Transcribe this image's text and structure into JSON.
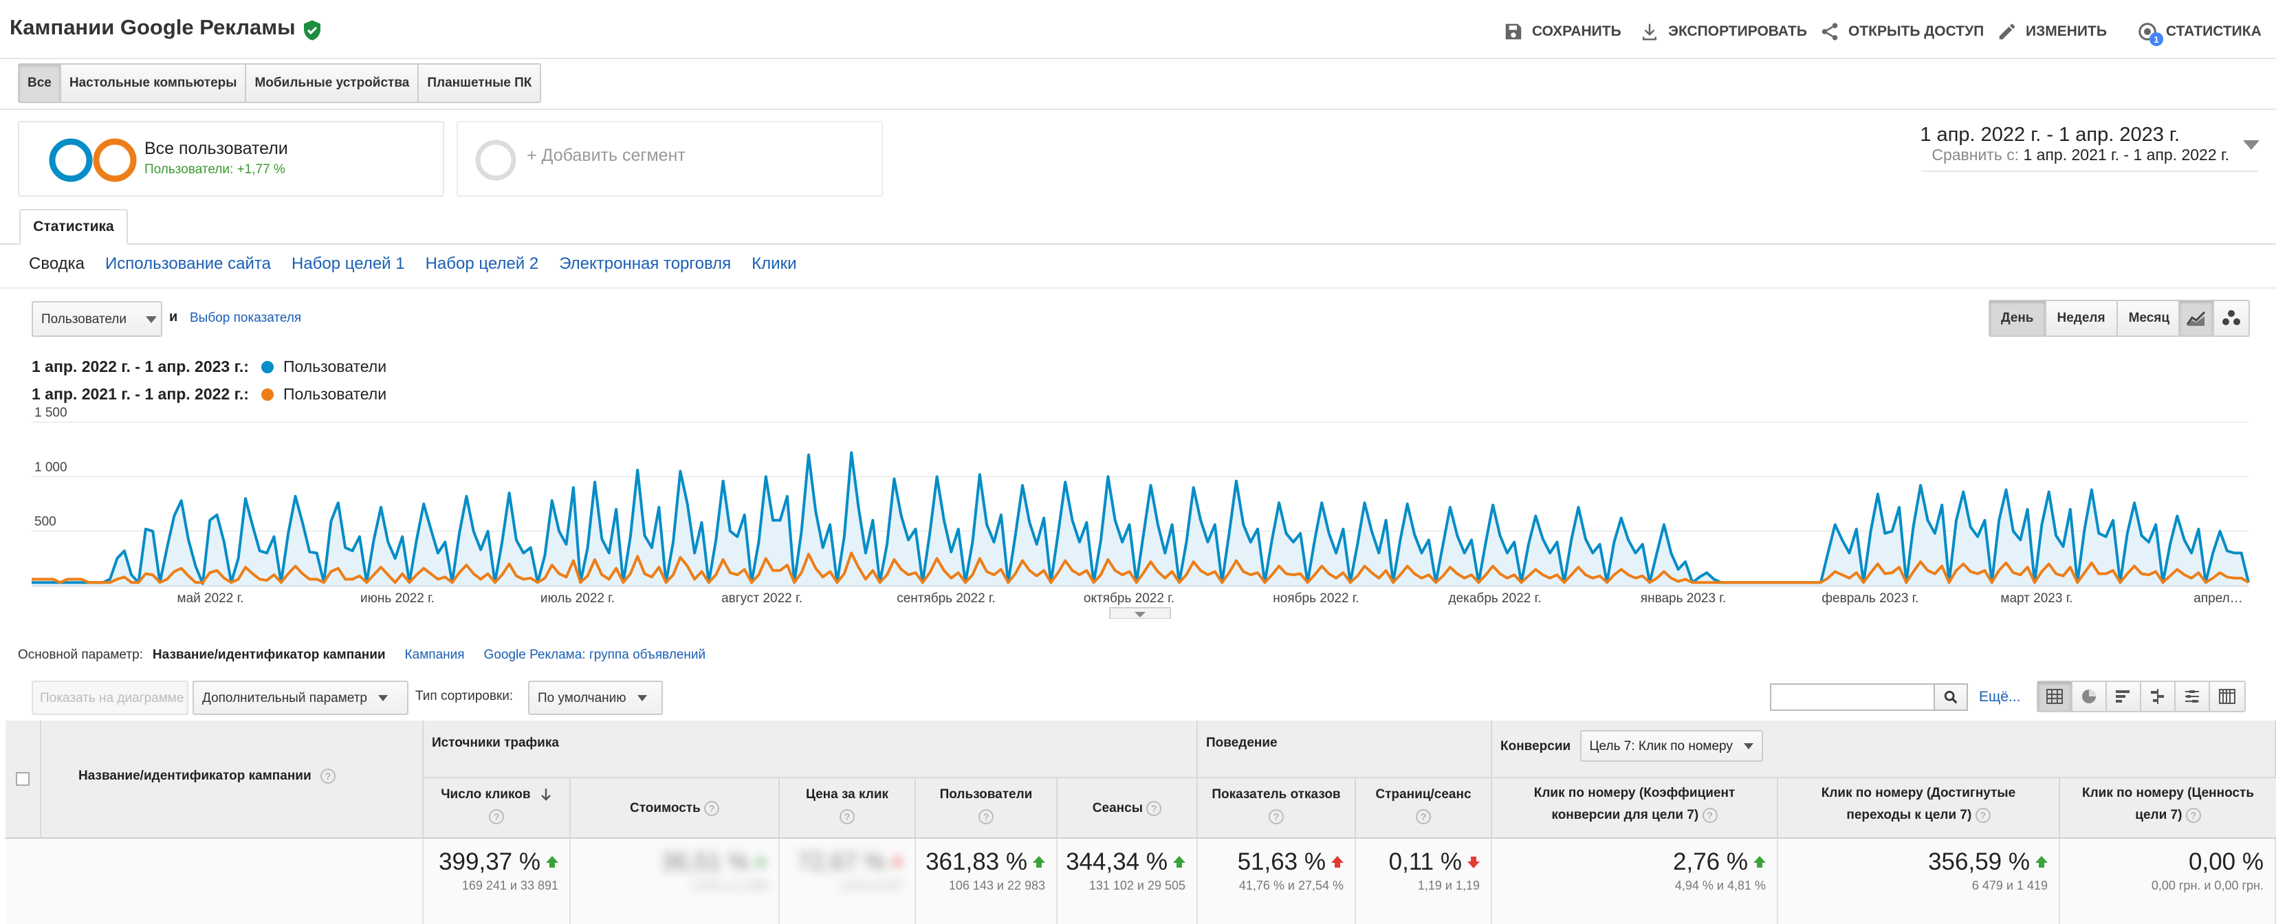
{
  "header": {
    "title": "Кампании Google Рекламы",
    "actions": {
      "save": "СОХРАНИТЬ",
      "export": "ЭКСПОРТИРОВАТЬ",
      "share": "ОТКРЫТЬ ДОСТУП",
      "edit": "ИЗМЕНИТЬ",
      "insights": "СТАТИСТИКА",
      "insights_badge": "1"
    }
  },
  "device_tabs": [
    "Все",
    "Настольные компьютеры",
    "Мобильные устройства",
    "Планшетные ПК"
  ],
  "segments": {
    "all_users": {
      "title": "Все пользователи",
      "sub": "Пользователи: +1,77 %"
    },
    "add_label": "+ Добавить сегмент"
  },
  "date_range": {
    "main": "1 апр. 2022 г. - 1 апр. 2023 г.",
    "compare_label": "Сравнить с:",
    "compare_value": "1 апр. 2021 г. - 1 апр. 2022 г."
  },
  "report_tab": "Статистика",
  "explorer_tabs": [
    "Сводка",
    "Использование сайта",
    "Набор целей 1",
    "Набор целей 2",
    "Электронная торговля",
    "Клики"
  ],
  "chart_controls": {
    "metric": "Пользователи",
    "and": "и",
    "choose_metric": "Выбор показателя",
    "periods": [
      "День",
      "Неделя",
      "Месяц"
    ]
  },
  "legend": [
    {
      "range": "1 апр. 2022 г. - 1 апр. 2023 г.:",
      "series": "Пользователи",
      "color": "#058dc7"
    },
    {
      "range": "1 апр. 2021 г. - 1 апр. 2022 г.:",
      "series": "Пользователи",
      "color": "#ed7e17"
    }
  ],
  "chart_data": {
    "type": "line",
    "y_ticks": [
      "1 500",
      "1 000",
      "500"
    ],
    "ylim": [
      0,
      1500
    ],
    "x_labels": [
      "май 2022 г.",
      "июнь 2022 г.",
      "июль 2022 г.",
      "август 2022 г.",
      "сентябрь 2022 г.",
      "октябрь 2022 г.",
      "ноябрь 2022 г.",
      "декабрь 2022 г.",
      "январь 2023 г.",
      "февраль 2023 г.",
      "март 2023 г.",
      "апрел…"
    ],
    "series": [
      {
        "name": "Пользователи",
        "color": "#058dc7",
        "period": "1 апр. 2022 г. - 1 апр. 2023 г.",
        "values": [
          30,
          30,
          30,
          30,
          30,
          30,
          30,
          30,
          30,
          30,
          30,
          60,
          250,
          320,
          100,
          30,
          520,
          500,
          30,
          350,
          640,
          780,
          420,
          180,
          20,
          600,
          650,
          400,
          30,
          250,
          800,
          550,
          320,
          300,
          450,
          30,
          480,
          820,
          580,
          310,
          300,
          30,
          590,
          760,
          350,
          320,
          450,
          30,
          420,
          720,
          400,
          250,
          450,
          30,
          420,
          750,
          520,
          300,
          400,
          30,
          480,
          820,
          500,
          330,
          500,
          30,
          400,
          850,
          420,
          300,
          350,
          30,
          280,
          780,
          500,
          380,
          900,
          30,
          350,
          950,
          430,
          300,
          700,
          30,
          450,
          1060,
          460,
          350,
          720,
          30,
          400,
          1050,
          750,
          300,
          580,
          30,
          420,
          960,
          500,
          450,
          650,
          30,
          400,
          1000,
          600,
          600,
          820,
          30,
          500,
          1200,
          680,
          350,
          560,
          30,
          450,
          1220,
          720,
          300,
          600,
          30,
          380,
          980,
          640,
          420,
          520,
          30,
          480,
          1000,
          600,
          310,
          520,
          30,
          400,
          1020,
          560,
          400,
          650,
          30,
          460,
          920,
          580,
          380,
          620,
          30,
          480,
          950,
          600,
          400,
          580,
          30,
          420,
          1000,
          600,
          400,
          560,
          30,
          480,
          920,
          560,
          300,
          560,
          30,
          400,
          900,
          600,
          400,
          560,
          30,
          480,
          960,
          560,
          400,
          520,
          30,
          420,
          760,
          480,
          400,
          480,
          30,
          420,
          760,
          480,
          300,
          520,
          30,
          380,
          760,
          500,
          300,
          600,
          30,
          420,
          750,
          470,
          300,
          420,
          30,
          380,
          720,
          460,
          300,
          420,
          30,
          400,
          740,
          460,
          300,
          400,
          30,
          380,
          640,
          430,
          300,
          400,
          30,
          420,
          720,
          430,
          300,
          380,
          30,
          400,
          620,
          420,
          300,
          380,
          30,
          300,
          560,
          300,
          150,
          220,
          30,
          80,
          120,
          60,
          30,
          30,
          30,
          30,
          30,
          30,
          30,
          30,
          30,
          30,
          30,
          30,
          30,
          30,
          30,
          300,
          560,
          420,
          300,
          520,
          30,
          500,
          840,
          480,
          500,
          720,
          30,
          550,
          920,
          600,
          480,
          740,
          30,
          600,
          860,
          540,
          450,
          600,
          30,
          600,
          880,
          500,
          420,
          700,
          30,
          560,
          860,
          460,
          360,
          700,
          30,
          520,
          880,
          480,
          450,
          600,
          30,
          480,
          760,
          460,
          400,
          560,
          30,
          380,
          640,
          420,
          300,
          520,
          30,
          300,
          500,
          320,
          300,
          300,
          30
        ],
        "fill": "#e6f2fa"
      },
      {
        "name": "Пользователи",
        "color": "#ed7e17",
        "period": "1 апр. 2021 г. - 1 апр. 2022 г.",
        "values": [
          60,
          60,
          60,
          60,
          30,
          60,
          60,
          60,
          30,
          30,
          30,
          30,
          60,
          80,
          30,
          30,
          110,
          100,
          30,
          60,
          130,
          160,
          90,
          30,
          30,
          120,
          140,
          70,
          30,
          60,
          170,
          110,
          60,
          50,
          100,
          30,
          110,
          180,
          110,
          60,
          60,
          30,
          130,
          160,
          60,
          60,
          90,
          30,
          100,
          170,
          100,
          30,
          110,
          30,
          100,
          160,
          110,
          60,
          80,
          30,
          120,
          190,
          110,
          60,
          110,
          30,
          100,
          200,
          90,
          60,
          70,
          30,
          70,
          190,
          110,
          80,
          230,
          30,
          90,
          240,
          100,
          60,
          160,
          30,
          110,
          270,
          110,
          80,
          170,
          30,
          100,
          260,
          180,
          60,
          130,
          30,
          100,
          240,
          120,
          100,
          150,
          30,
          100,
          250,
          140,
          140,
          190,
          30,
          120,
          290,
          160,
          80,
          130,
          30,
          110,
          300,
          170,
          60,
          140,
          30,
          100,
          240,
          150,
          100,
          120,
          30,
          120,
          250,
          140,
          70,
          120,
          30,
          100,
          250,
          130,
          100,
          150,
          30,
          110,
          230,
          140,
          90,
          140,
          30,
          120,
          230,
          140,
          100,
          140,
          30,
          100,
          240,
          140,
          100,
          130,
          30,
          120,
          220,
          130,
          70,
          130,
          30,
          100,
          220,
          140,
          100,
          130,
          30,
          120,
          230,
          130,
          100,
          120,
          30,
          100,
          180,
          110,
          100,
          110,
          30,
          100,
          180,
          110,
          70,
          120,
          30,
          90,
          180,
          120,
          70,
          140,
          30,
          100,
          180,
          110,
          70,
          100,
          30,
          90,
          170,
          110,
          70,
          100,
          30,
          100,
          180,
          110,
          70,
          100,
          30,
          90,
          150,
          100,
          70,
          100,
          30,
          100,
          170,
          100,
          70,
          90,
          30,
          100,
          150,
          100,
          70,
          90,
          30,
          70,
          130,
          70,
          40,
          60,
          30,
          30,
          30,
          30,
          30,
          30,
          30,
          30,
          30,
          30,
          30,
          30,
          30,
          30,
          30,
          30,
          30,
          30,
          30,
          70,
          130,
          100,
          70,
          120,
          30,
          120,
          200,
          110,
          120,
          170,
          30,
          130,
          220,
          140,
          110,
          180,
          30,
          140,
          200,
          130,
          110,
          140,
          30,
          140,
          210,
          120,
          100,
          170,
          30,
          130,
          200,
          110,
          90,
          170,
          30,
          120,
          210,
          110,
          110,
          140,
          30,
          110,
          180,
          110,
          100,
          130,
          30,
          90,
          150,
          100,
          70,
          120,
          30,
          70,
          120,
          80,
          70,
          70,
          30
        ]
      }
    ]
  },
  "dimension": {
    "label": "Основной параметр:",
    "active": "Название/идентификатор кампании",
    "options": [
      "Кампания",
      "Google Реклама: группа объявлений"
    ]
  },
  "table_toolbar": {
    "plot_rows": "Показать на диаграмме",
    "secondary_dimension": "Дополнительный параметр",
    "sort_label": "Тип сортировки:",
    "sort_value": "По умолчанию",
    "more": "Ещё..."
  },
  "table": {
    "first_col": "Название/идентификатор кампании",
    "groups": {
      "acquisition": "Источники трафика",
      "behavior": "Поведение",
      "conversions": "Конверсии",
      "goal": "Цель 7: Клик по номеру"
    },
    "columns": [
      "Число кликов",
      "Стоимость",
      "Цена за клик",
      "Пользователи",
      "Сеансы",
      "Показатель отказов",
      "Страниц/сеанс",
      "Клик по номеру (Коэффициент конверсии для цели 7)",
      "Клик по номеру (Достигнутые переходы к цели 7)",
      "Клик по номеру (Ценность цели 7)"
    ],
    "totals": [
      {
        "big": "399,37 %",
        "small": "169 241 и 33 891",
        "trend": "up"
      },
      {
        "big": "36,51 %",
        "small": "3 041 и 2 228",
        "trend": "up",
        "blurred": true
      },
      {
        "big": "72,67 %",
        "small": "0,02 и 0,07",
        "trend": "down",
        "blurred": true
      },
      {
        "big": "361,83 %",
        "small": "106 143 и 22 983",
        "trend": "up"
      },
      {
        "big": "344,34 %",
        "small": "131 102 и 29 505",
        "trend": "up"
      },
      {
        "big": "51,63 %",
        "small": "41,76 % и 27,54 %",
        "trend": "up-red"
      },
      {
        "big": "0,11 %",
        "small": "1,19 и 1,19",
        "trend": "down"
      },
      {
        "big": "2,76 %",
        "small": "4,94 % и 4,81 %",
        "trend": "up"
      },
      {
        "big": "356,59 %",
        "small": "6 479 и 1 419",
        "trend": "up"
      },
      {
        "big": "0,00 %",
        "small": "0,00 грн. и 0,00 грн.",
        "trend": "none"
      }
    ]
  }
}
